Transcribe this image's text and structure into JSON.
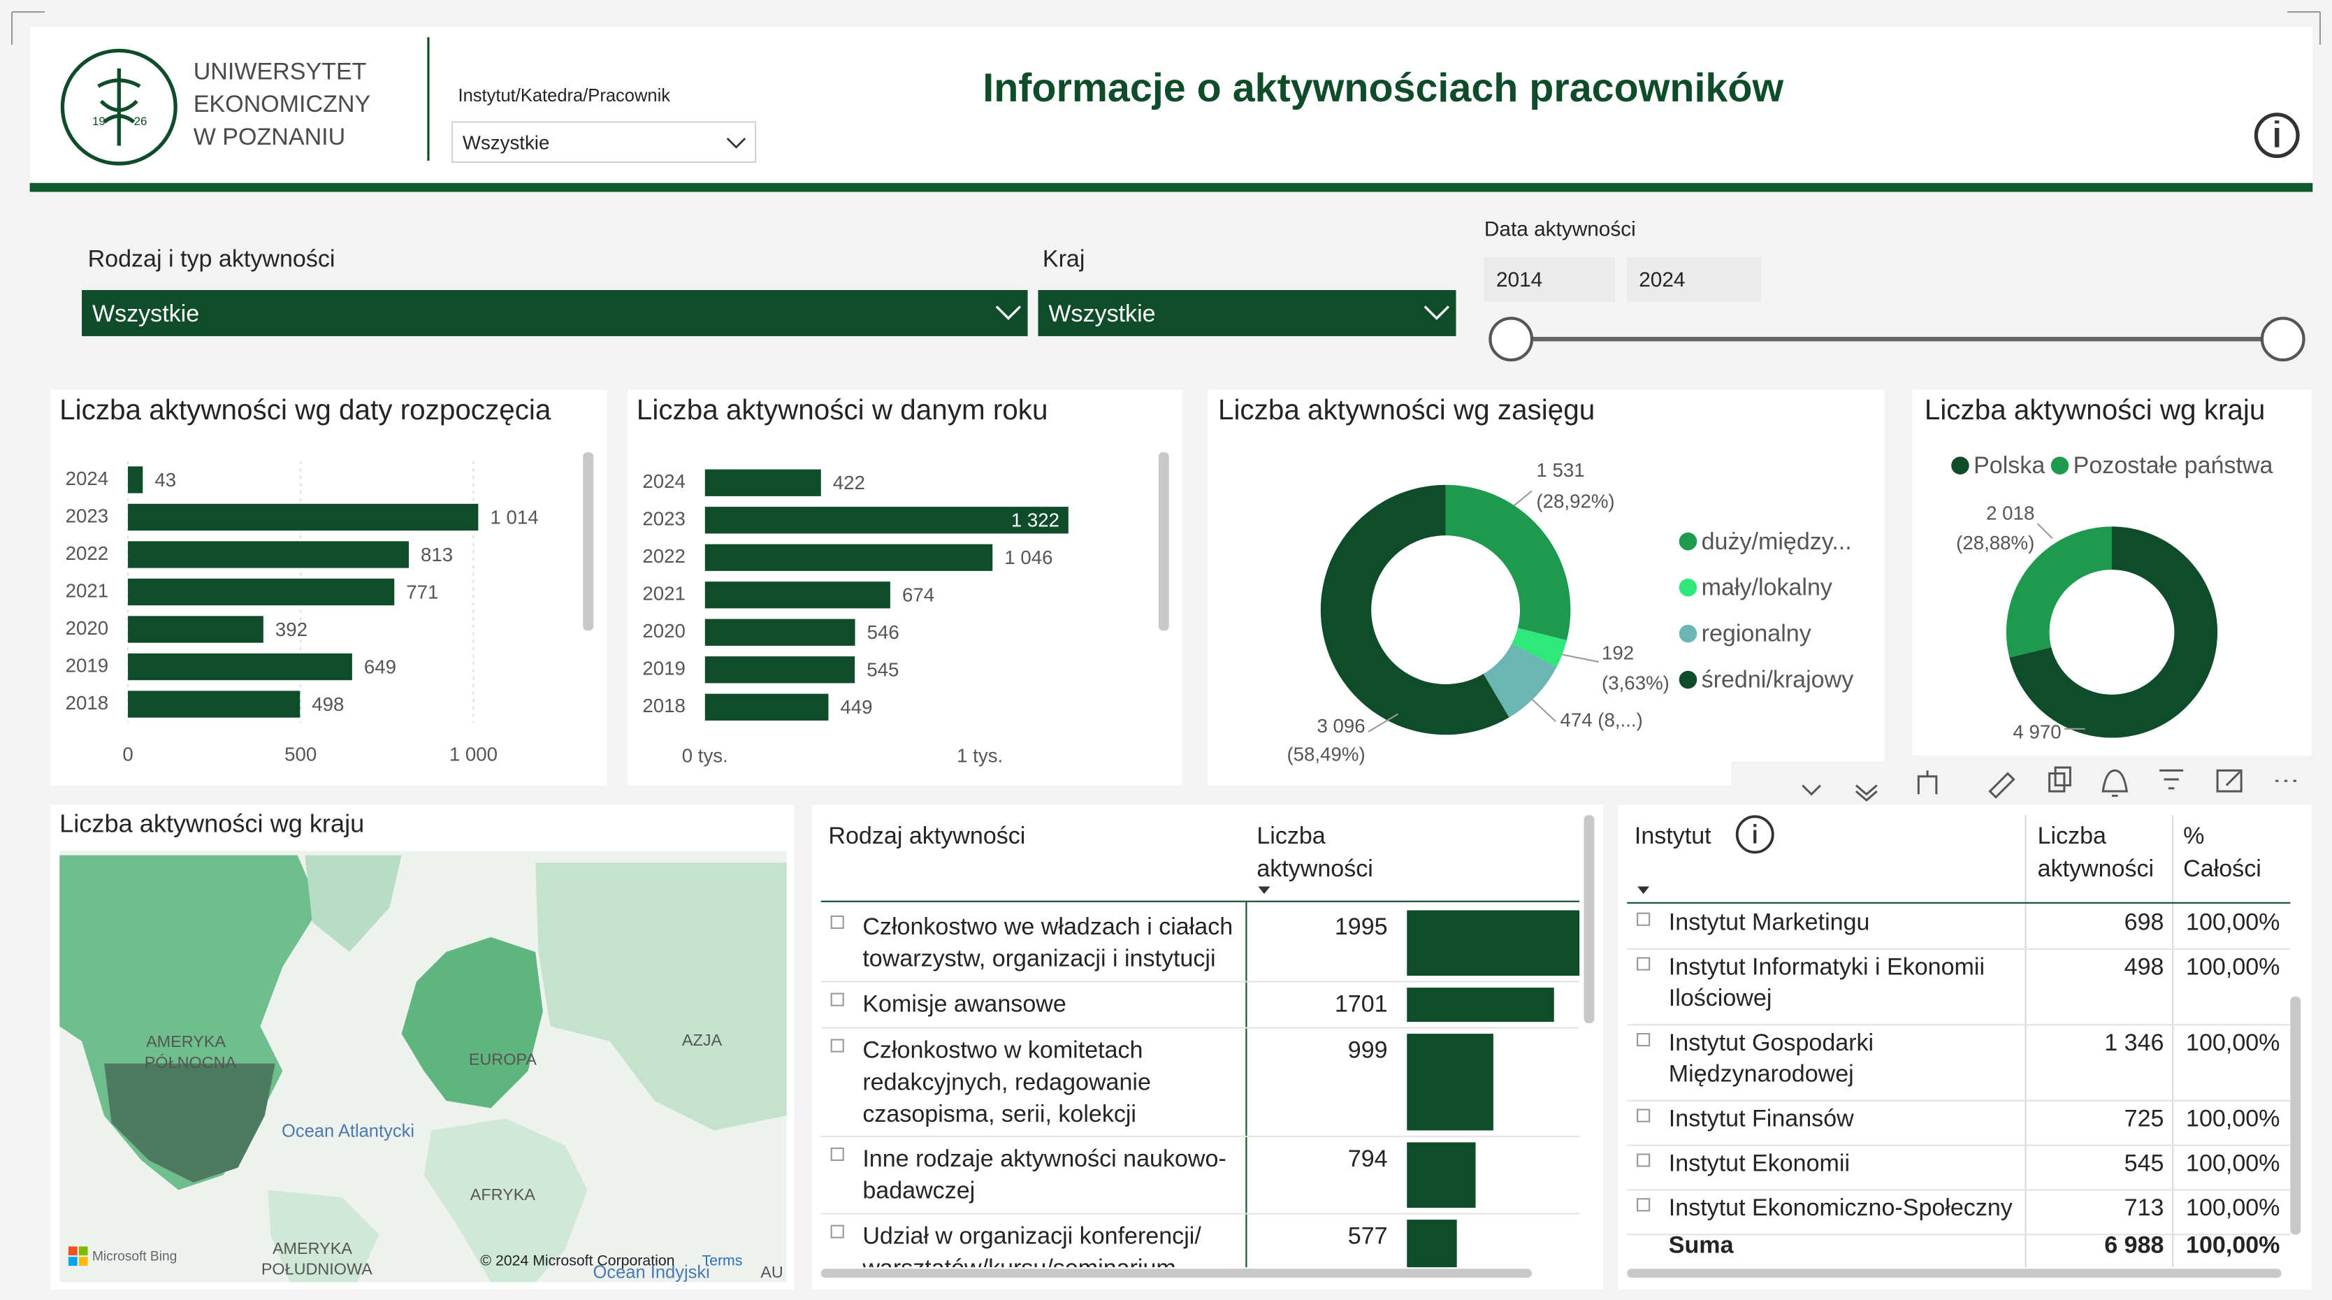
{
  "header": {
    "logo_lines": [
      "UNIWERSYTET",
      "EKONOMICZNY",
      "W POZNANIU"
    ],
    "logo_years": [
      "19",
      "26"
    ],
    "title": "Informacje o aktywnościach pracowników",
    "filter": {
      "label": "Instytut/Katedra/Pracownik",
      "value": "Wszystkie"
    }
  },
  "filters": {
    "activity": {
      "label": "Rodzaj i typ aktywności",
      "value": "Wszystkie"
    },
    "country": {
      "label": "Kraj",
      "value": "Wszystkie"
    },
    "date": {
      "label": "Data aktywności",
      "from": "2014",
      "to": "2024"
    }
  },
  "charts": [
    {
      "type": "hbar",
      "title": "Liczba aktywności wg daty rozpoczęcia",
      "categories": [
        "2024",
        "2023",
        "2022",
        "2021",
        "2020",
        "2019",
        "2018"
      ],
      "values": [
        43,
        1014,
        813,
        771,
        392,
        649,
        498
      ],
      "value_labels": [
        "43",
        "1 014",
        "813",
        "771",
        "392",
        "649",
        "498"
      ],
      "color": "#0f4d2a",
      "xlim": [
        0,
        1300
      ],
      "xticks": [
        0,
        500,
        {
          "value": 1000,
          "label": "1 000"
        }
      ],
      "grid": true
    },
    {
      "type": "hbar",
      "title": "Liczba aktywności w danym roku",
      "categories": [
        "2024",
        "2023",
        "2022",
        "2021",
        "2020",
        "2019",
        "2018"
      ],
      "values": [
        422,
        1322,
        1046,
        674,
        546,
        545,
        449
      ],
      "value_labels": [
        "422",
        "1 322",
        "1 046",
        "674",
        "546",
        "545",
        "449"
      ],
      "color": "#0f4d2a",
      "xlim": [
        0,
        1650
      ],
      "xticks": [
        {
          "value": 0,
          "label": "0 tys."
        },
        {
          "value": 1000,
          "label": "1 tys."
        }
      ],
      "grid": false
    },
    {
      "type": "donut",
      "title": "Liczba aktywności wg zasięgu",
      "categories": [
        "duży/między...",
        "mały/lokalny",
        "regionalny",
        "średni/krajowy"
      ],
      "values": [
        1531,
        192,
        474,
        3096
      ],
      "value_labels": [
        "1 531",
        "192",
        "474 (8,...)",
        "3 096"
      ],
      "percent_labels": [
        "(28,92%)",
        "(3,63%)",
        null,
        "(58,49%)"
      ],
      "colors": [
        "#1e9a4f",
        "#2ee87a",
        "#6cb5b5",
        "#0f4d2a"
      ],
      "legend": "right"
    },
    {
      "type": "donut",
      "title": "Liczba aktywności wg kraju",
      "categories": [
        "Polska",
        "Pozostałe państwa"
      ],
      "values": [
        4970,
        2018
      ],
      "value_labels": [
        "4 970",
        "2 018"
      ],
      "percent_labels": [
        null,
        "(28,88%)"
      ],
      "colors": [
        "#0f4d2a",
        "#1e9a4f"
      ],
      "legend": "top"
    }
  ],
  "map": {
    "title": "Liczba aktywności wg kraju",
    "labels": [
      "AMERYKA",
      "PÓŁNOCNA",
      "EUROPA",
      "AZJA",
      "Ocean Atlantycki",
      "AFRYKA",
      "AMERYKA",
      "POŁUDNIOWA",
      "Ocean Indyjski",
      "AU"
    ],
    "attribution": [
      "Microsoft Bing",
      "© 2024 Microsoft Corporation",
      "Terms"
    ]
  },
  "activity_table": {
    "headers": [
      [
        "Rodzaj aktywności"
      ],
      [
        "Liczba",
        "aktywności"
      ]
    ],
    "rows": [
      {
        "lines": [
          "Członkostwo we władzach i ciałach",
          "towarzystw, organizacji i instytucji"
        ],
        "value": 1995
      },
      {
        "lines": [
          "Komisje awansowe"
        ],
        "value": 1701
      },
      {
        "lines": [
          "Członkostwo w komitetach",
          "redakcyjnych, redagowanie",
          "czasopisma, serii, kolekcji"
        ],
        "value": 999
      },
      {
        "lines": [
          "Inne rodzaje aktywności naukowo-",
          "badawczej"
        ],
        "value": 794
      },
      {
        "lines": [
          "Udział w organizacji konferencji/",
          "warsztatów/kursu/seminarium"
        ],
        "value": 577
      }
    ]
  },
  "institute_table": {
    "headers": [
      [
        "Instytut"
      ],
      [
        "Liczba",
        "aktywności"
      ],
      [
        "%",
        "Całości"
      ]
    ],
    "rows": [
      {
        "lines": [
          "Instytut Marketingu"
        ],
        "count": "698",
        "share": "100,00%"
      },
      {
        "lines": [
          "Instytut Informatyki i Ekonomii",
          "Ilościowej"
        ],
        "count": "498",
        "share": "100,00%"
      },
      {
        "lines": [
          "Instytut Gospodarki",
          "Międzynarodowej"
        ],
        "count": "1 346",
        "share": "100,00%"
      },
      {
        "lines": [
          "Instytut Finansów"
        ],
        "count": "725",
        "share": "100,00%"
      },
      {
        "lines": [
          "Instytut Ekonomii"
        ],
        "count": "545",
        "share": "100,00%"
      },
      {
        "lines": [
          "Instytut Ekonomiczno-Społeczny"
        ],
        "count": "713",
        "share": "100,00%"
      }
    ],
    "total": {
      "label": "Suma",
      "count": "6 988",
      "share": "100,00%"
    }
  }
}
